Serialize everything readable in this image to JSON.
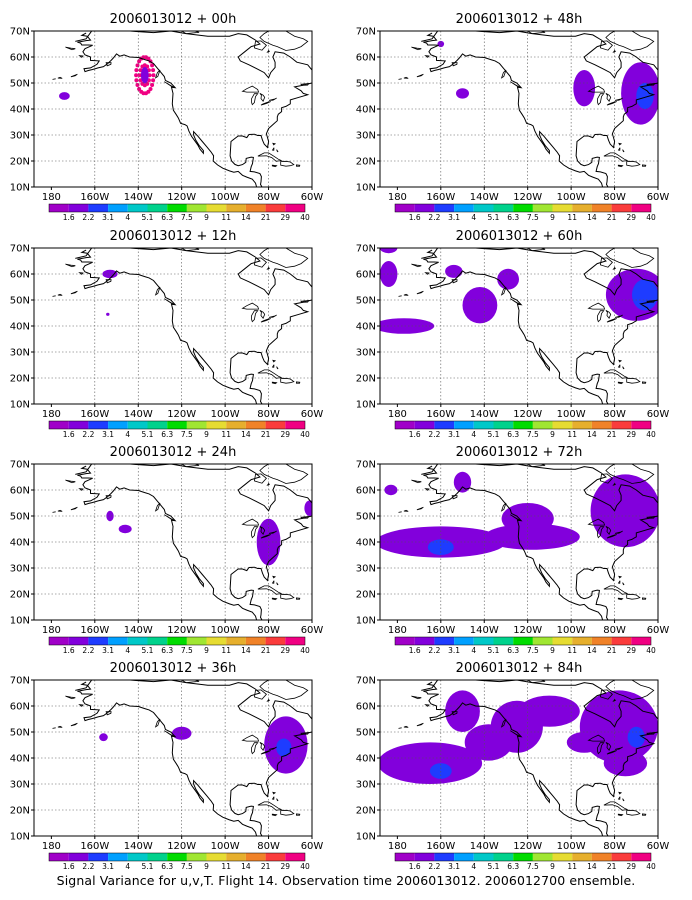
{
  "caption": "Signal Variance for u,v,T. Flight 14. Observation time 2006013012. 2006012700 ensemble.",
  "axes": {
    "lat_labels": [
      "70N",
      "60N",
      "50N",
      "40N",
      "30N",
      "20N",
      "10N"
    ],
    "lat_values": [
      70,
      60,
      50,
      40,
      30,
      20,
      10
    ],
    "lon_labels": [
      "180",
      "160W",
      "140W",
      "120W",
      "100W",
      "80W",
      "60W"
    ],
    "lon_values": [
      -180,
      -160,
      -140,
      -120,
      -100,
      -80,
      -60
    ],
    "xlim": [
      -188,
      -60
    ],
    "ylim": [
      10,
      70
    ],
    "grid": true,
    "grid_style": "dotted"
  },
  "colorbar": {
    "levels": [
      "1.6",
      "2.2",
      "3.1",
      "4",
      "5.1",
      "6.3",
      "7.5",
      "9",
      "11",
      "14",
      "21",
      "29",
      "40"
    ],
    "colors": [
      "#a000c8",
      "#8200dc",
      "#1e3cff",
      "#00a0ff",
      "#00c8c8",
      "#00d28c",
      "#00dc00",
      "#a0e632",
      "#e6dc32",
      "#e6af2d",
      "#f08228",
      "#fa3c3c",
      "#f00082"
    ]
  },
  "chart_data": [
    {
      "type": "heatmap",
      "title": "2006013012 + 00h",
      "features": [
        {
          "lon": -174,
          "lat": 45,
          "rx": 2.5,
          "ry": 1.5,
          "level": 1,
          "style": "fill"
        },
        {
          "lon": -137,
          "lat": 53,
          "rx": 4,
          "ry": 7,
          "level": 12,
          "style": "dots"
        }
      ]
    },
    {
      "type": "heatmap",
      "title": "2006013012 + 12h",
      "features": [
        {
          "lon": -153,
          "lat": 60,
          "rx": 3.5,
          "ry": 1.6,
          "level": 1,
          "style": "fill"
        },
        {
          "lon": -154,
          "lat": 44.5,
          "rx": 0.8,
          "ry": 0.6,
          "level": 1,
          "style": "fill"
        }
      ]
    },
    {
      "type": "heatmap",
      "title": "2006013012 + 24h",
      "features": [
        {
          "lon": -153,
          "lat": 50,
          "rx": 1.7,
          "ry": 2,
          "level": 1,
          "style": "fill"
        },
        {
          "lon": -146,
          "lat": 45,
          "rx": 3,
          "ry": 1.6,
          "level": 1,
          "style": "fill"
        },
        {
          "lon": -80,
          "lat": 40,
          "rx": 5.5,
          "ry": 9,
          "level": 1,
          "style": "fill"
        },
        {
          "lon": -61,
          "lat": 53,
          "rx": 2.5,
          "ry": 3,
          "level": 1,
          "style": "fill"
        }
      ]
    },
    {
      "type": "heatmap",
      "title": "2006013012 + 36h",
      "features": [
        {
          "lon": -156,
          "lat": 48,
          "rx": 2,
          "ry": 1.5,
          "level": 1,
          "style": "fill"
        },
        {
          "lon": -120,
          "lat": 49.5,
          "rx": 4.5,
          "ry": 2.5,
          "level": 1,
          "style": "fill"
        },
        {
          "lon": -72,
          "lat": 45,
          "rx": 10,
          "ry": 11,
          "level": 1,
          "style": "fill"
        },
        {
          "lon": -73,
          "lat": 44,
          "rx": 3.5,
          "ry": 3.5,
          "level": 2,
          "style": "fill"
        }
      ]
    },
    {
      "type": "heatmap",
      "title": "2006013012 + 48h",
      "features": [
        {
          "lon": -160,
          "lat": 65,
          "rx": 1.5,
          "ry": 1.2,
          "level": 1,
          "style": "fill"
        },
        {
          "lon": -150,
          "lat": 46,
          "rx": 3,
          "ry": 2,
          "level": 1,
          "style": "fill"
        },
        {
          "lon": -94,
          "lat": 48,
          "rx": 5,
          "ry": 7,
          "level": 1,
          "style": "fill"
        },
        {
          "lon": -68,
          "lat": 46,
          "rx": 9,
          "ry": 12,
          "level": 1,
          "style": "fill"
        },
        {
          "lon": -66,
          "lat": 45,
          "rx": 4,
          "ry": 5,
          "level": 2,
          "style": "fill"
        }
      ]
    },
    {
      "type": "heatmap",
      "title": "2006013012 + 60h",
      "features": [
        {
          "lon": -184,
          "lat": 70,
          "rx": 4,
          "ry": 2,
          "level": 1,
          "style": "fill"
        },
        {
          "lon": -184,
          "lat": 60,
          "rx": 4,
          "ry": 5,
          "level": 1,
          "style": "fill"
        },
        {
          "lon": -177,
          "lat": 40,
          "rx": 14,
          "ry": 3,
          "level": 1,
          "style": "fill"
        },
        {
          "lon": -154,
          "lat": 61,
          "rx": 4,
          "ry": 2.5,
          "level": 1,
          "style": "fill"
        },
        {
          "lon": -142,
          "lat": 48,
          "rx": 8,
          "ry": 7,
          "level": 1,
          "style": "fill"
        },
        {
          "lon": -129,
          "lat": 58,
          "rx": 5,
          "ry": 4,
          "level": 1,
          "style": "fill"
        },
        {
          "lon": -70,
          "lat": 52,
          "rx": 14,
          "ry": 10,
          "level": 1,
          "style": "fill"
        },
        {
          "lon": -66,
          "lat": 52,
          "rx": 6,
          "ry": 6,
          "level": 2,
          "style": "fill"
        }
      ]
    },
    {
      "type": "heatmap",
      "title": "2006013012 + 72h",
      "features": [
        {
          "lon": -160,
          "lat": 40,
          "rx": 30,
          "ry": 6,
          "level": 1,
          "style": "fill"
        },
        {
          "lon": -150,
          "lat": 63,
          "rx": 4,
          "ry": 4,
          "level": 1,
          "style": "fill"
        },
        {
          "lon": -183,
          "lat": 60,
          "rx": 3,
          "ry": 2,
          "level": 1,
          "style": "fill"
        },
        {
          "lon": -118,
          "lat": 42,
          "rx": 22,
          "ry": 5,
          "level": 1,
          "style": "fill"
        },
        {
          "lon": -120,
          "lat": 49,
          "rx": 12,
          "ry": 6,
          "level": 1,
          "style": "fill"
        },
        {
          "lon": -75,
          "lat": 52,
          "rx": 16,
          "ry": 14,
          "level": 1,
          "style": "fill"
        },
        {
          "lon": -160,
          "lat": 38,
          "rx": 6,
          "ry": 3,
          "level": 2,
          "style": "fill"
        }
      ]
    },
    {
      "type": "heatmap",
      "title": "2006013012 + 84h",
      "features": [
        {
          "lon": -165,
          "lat": 38,
          "rx": 24,
          "ry": 8,
          "level": 1,
          "style": "fill"
        },
        {
          "lon": -160,
          "lat": 35,
          "rx": 5,
          "ry": 3,
          "level": 2,
          "style": "fill"
        },
        {
          "lon": -150,
          "lat": 58,
          "rx": 8,
          "ry": 8,
          "level": 1,
          "style": "fill"
        },
        {
          "lon": -138,
          "lat": 46,
          "rx": 11,
          "ry": 7,
          "level": 1,
          "style": "fill"
        },
        {
          "lon": -125,
          "lat": 52,
          "rx": 12,
          "ry": 10,
          "level": 1,
          "style": "fill"
        },
        {
          "lon": -110,
          "lat": 58,
          "rx": 14,
          "ry": 6,
          "level": 1,
          "style": "fill"
        },
        {
          "lon": -78,
          "lat": 52,
          "rx": 18,
          "ry": 14,
          "level": 1,
          "style": "fill"
        },
        {
          "lon": -75,
          "lat": 38,
          "rx": 10,
          "ry": 5,
          "level": 1,
          "style": "fill"
        },
        {
          "lon": -70,
          "lat": 48,
          "rx": 4,
          "ry": 4,
          "level": 2,
          "style": "fill"
        },
        {
          "lon": -94,
          "lat": 46,
          "rx": 8,
          "ry": 4,
          "level": 1,
          "style": "fill"
        }
      ]
    }
  ]
}
